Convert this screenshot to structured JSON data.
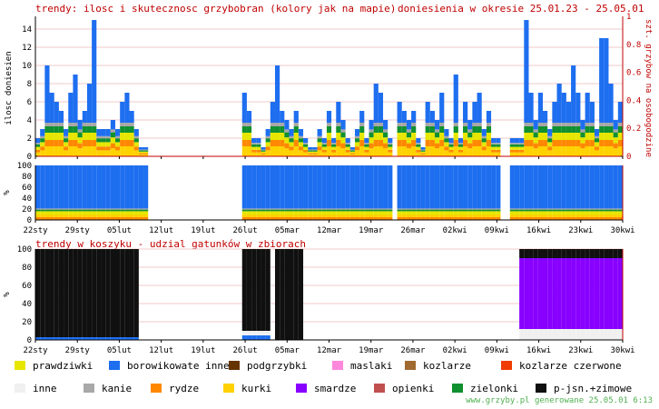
{
  "header": {
    "title_left": "trendy: ilosc i skutecznosc grzybobran (kolory jak na mapie)",
    "title_right": "doniesienia w okresie 25.01.23 - 25.05.01"
  },
  "lower_title": "trendy w koszyku - udzial gatunków w zbiorach",
  "footer": "www.grzyby.pl generowane 25.05.01  6:13",
  "colors": {
    "prawdziwki": "#e6e600",
    "borowikowate_inne": "#1e6ef0",
    "podgrzybki": "#663300",
    "maslaki": "#ff88dd",
    "kozlarze": "#a06a30",
    "kozlarze_czerwone": "#f03c00",
    "inne": "#f0f0f0",
    "kanie": "#a8a8a8",
    "rydze": "#ff8800",
    "kurki": "#ffd200",
    "smardze": "#8800ff",
    "opienki": "#c05050",
    "zielonki": "#109030",
    "pjsn_zimowe": "#101010",
    "axis_red": "#c00000",
    "grid": "#f0c8c8"
  },
  "legend": [
    {
      "label": "prawdziwki",
      "color": "#e6e600"
    },
    {
      "label": "borowikowate inne",
      "color": "#1e6ef0"
    },
    {
      "label": "podgrzybki",
      "color": "#663300"
    },
    {
      "label": "maslaki",
      "color": "#ff88dd"
    },
    {
      "label": "kozlarze",
      "color": "#a06a30"
    },
    {
      "label": "kozlarze czerwone",
      "color": "#f03c00"
    },
    {
      "label": "inne",
      "color": "#f0f0f0"
    },
    {
      "label": "kanie",
      "color": "#a8a8a8"
    },
    {
      "label": "rydze",
      "color": "#ff8800"
    },
    {
      "label": "kurki",
      "color": "#ffd200"
    },
    {
      "label": "smardze",
      "color": "#8800ff"
    },
    {
      "label": "opienki",
      "color": "#c05050"
    },
    {
      "label": "zielonki",
      "color": "#109030"
    },
    {
      "label": "p-jsn.+zimowe",
      "color": "#101010"
    }
  ],
  "chart_data": [
    {
      "type": "bar",
      "ylabel": "ilosc doniesien",
      "y2label": "szt. grzybow na osobogodzine",
      "ylim": [
        0,
        15
      ],
      "yticks": [
        0,
        2,
        4,
        6,
        8,
        10,
        12,
        14
      ],
      "y2lim": [
        0,
        1
      ],
      "y2ticks": [
        "0",
        "0.2",
        "0.4",
        "0.6",
        "0.8",
        "1"
      ],
      "values": [
        2,
        3,
        10,
        7,
        6,
        5,
        3,
        7,
        9,
        4,
        5,
        8,
        15,
        3,
        3,
        3,
        4,
        3,
        6,
        7,
        5,
        3,
        1,
        1,
        0,
        0,
        0,
        0,
        0,
        0,
        0,
        0,
        0,
        0,
        0,
        0,
        0,
        0,
        0,
        0,
        0,
        0,
        0,
        0,
        7,
        5,
        2,
        2,
        1,
        3,
        6,
        10,
        5,
        4,
        3,
        5,
        3,
        2,
        1,
        1,
        3,
        2,
        5,
        2,
        6,
        4,
        2,
        1,
        3,
        5,
        2,
        4,
        8,
        7,
        4,
        2,
        0,
        6,
        5,
        4,
        5,
        2,
        1,
        6,
        5,
        4,
        7,
        3,
        2,
        9,
        2,
        6,
        4,
        6,
        7,
        3,
        5,
        2,
        2,
        0,
        0,
        2,
        2,
        2,
        15,
        7,
        4,
        7,
        5,
        3,
        6,
        8,
        7,
        6,
        10,
        7,
        4,
        7,
        6,
        3,
        13,
        13,
        8,
        4,
        6
      ],
      "rate_line": [
        0,
        0,
        0,
        0,
        0,
        0,
        0,
        0,
        0,
        0,
        0,
        0,
        0,
        0,
        0,
        0,
        0,
        0,
        0,
        0,
        0,
        0,
        0,
        0,
        0,
        0,
        0,
        0,
        0,
        0,
        0,
        0,
        0,
        0,
        0,
        0,
        0,
        0,
        0,
        0,
        0,
        0,
        0,
        0,
        0,
        0,
        0,
        0,
        0,
        0,
        0,
        0,
        0,
        0,
        0,
        0,
        0,
        0,
        0,
        0,
        0,
        0,
        0,
        0,
        0,
        0,
        0,
        0,
        0,
        0,
        0,
        0,
        0,
        0,
        0,
        0,
        0,
        0,
        0,
        0,
        0,
        0,
        0,
        0,
        0,
        0,
        0,
        0,
        0,
        0,
        0,
        0,
        0,
        0,
        0,
        0,
        0,
        0,
        0,
        0,
        0,
        0,
        0,
        0,
        0,
        0,
        0,
        0,
        0,
        0,
        0,
        0,
        0,
        0,
        0,
        0,
        0,
        0,
        0,
        0,
        0,
        0,
        0,
        0,
        0
      ]
    },
    {
      "type": "area",
      "ylabel": "%",
      "ylim": [
        0,
        100
      ],
      "yticks": [
        0,
        20,
        40,
        60,
        80,
        100
      ]
    },
    {
      "type": "area",
      "ylabel": "%",
      "ylim": [
        0,
        100
      ],
      "yticks": [
        0,
        20,
        40,
        60,
        80,
        100
      ]
    }
  ],
  "x_axis": {
    "tick_labels": [
      "22sty",
      "29sty",
      "05lut",
      "12lut",
      "19lut",
      "26lut",
      "05mar",
      "12mar",
      "19mar",
      "26mar",
      "02kwi",
      "09kwi",
      "16kwi",
      "23kwi",
      "30kwi"
    ]
  }
}
